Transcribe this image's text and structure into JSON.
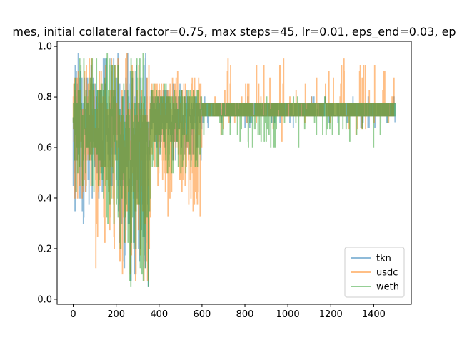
{
  "chart_data": {
    "type": "line",
    "title": "mes, initial collateral factor=0.75, max steps=45, lr=0.01, eps_end=0.03, ep",
    "xlabel": "",
    "ylabel": "",
    "xlim": [
      -75,
      1575
    ],
    "ylim": [
      -0.02,
      1.02
    ],
    "xticks": [
      0,
      200,
      400,
      600,
      800,
      1000,
      1200,
      1400
    ],
    "yticks": [
      0.0,
      0.2,
      0.4,
      0.6,
      0.8,
      1.0
    ],
    "xtick_labels": [
      "0",
      "200",
      "400",
      "600",
      "800",
      "1000",
      "1200",
      "1400"
    ],
    "ytick_labels": [
      "0.0",
      "0.2",
      "0.4",
      "0.6",
      "0.8",
      "1.0"
    ],
    "grid": false,
    "legend_position": "lower-right",
    "n_points": 1500,
    "series": [
      {
        "name": "tkn",
        "color": "#1f77b4",
        "alpha": 0.5,
        "profile": [
          {
            "x_from": 0,
            "x_to": 100,
            "min": 0.3,
            "max": 0.97,
            "center": 0.72
          },
          {
            "x_from": 100,
            "x_to": 200,
            "min": 0.4,
            "max": 0.97,
            "center": 0.7
          },
          {
            "x_from": 200,
            "x_to": 360,
            "min": 0.03,
            "max": 0.97,
            "center": 0.6
          },
          {
            "x_from": 360,
            "x_to": 600,
            "min": 0.55,
            "max": 0.85,
            "center": 0.75
          },
          {
            "x_from": 600,
            "x_to": 1500,
            "min": 0.68,
            "max": 0.8,
            "center": 0.75
          }
        ]
      },
      {
        "name": "usdc",
        "color": "#ff7f0e",
        "alpha": 0.5,
        "profile": [
          {
            "x_from": 0,
            "x_to": 100,
            "min": 0.37,
            "max": 0.97,
            "center": 0.7
          },
          {
            "x_from": 100,
            "x_to": 200,
            "min": 0.1,
            "max": 0.97,
            "center": 0.65
          },
          {
            "x_from": 200,
            "x_to": 360,
            "min": 0.03,
            "max": 0.97,
            "center": 0.55
          },
          {
            "x_from": 360,
            "x_to": 600,
            "min": 0.33,
            "max": 0.9,
            "center": 0.72
          },
          {
            "x_from": 600,
            "x_to": 1500,
            "min": 0.62,
            "max": 0.95,
            "center": 0.75
          }
        ]
      },
      {
        "name": "weth",
        "color": "#2ca02c",
        "alpha": 0.5,
        "profile": [
          {
            "x_from": 0,
            "x_to": 100,
            "min": 0.4,
            "max": 0.97,
            "center": 0.72
          },
          {
            "x_from": 100,
            "x_to": 200,
            "min": 0.3,
            "max": 0.97,
            "center": 0.66
          },
          {
            "x_from": 200,
            "x_to": 360,
            "min": 0.03,
            "max": 0.97,
            "center": 0.55
          },
          {
            "x_from": 360,
            "x_to": 600,
            "min": 0.5,
            "max": 0.85,
            "center": 0.74
          },
          {
            "x_from": 600,
            "x_to": 1500,
            "min": 0.6,
            "max": 0.8,
            "center": 0.75
          }
        ]
      }
    ]
  }
}
